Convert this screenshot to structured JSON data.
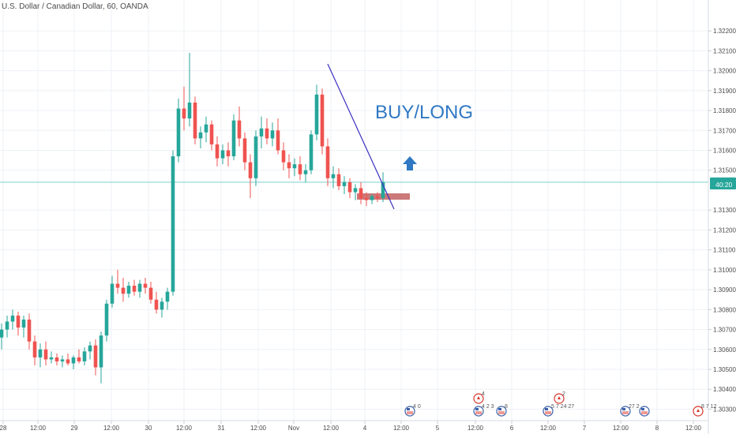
{
  "header": {
    "title": "U.S. Dollar / Canadian Dollar, 60, OANDA"
  },
  "price_axis": {
    "ticks": [
      "1.32200",
      "1.32100",
      "1.32000",
      "1.31900",
      "1.31800",
      "1.31700",
      "1.31600",
      "1.31500",
      "1.31300",
      "1.31200",
      "1.31100",
      "1.31000",
      "1.30900",
      "1.30800",
      "1.30700",
      "1.30600",
      "1.30500",
      "1.30400",
      "1.30300"
    ],
    "last_price": "1.31440",
    "countdown": "40:20",
    "last_price_color": "#26a69a"
  },
  "time_axis": {
    "labels": [
      "28",
      "12:00",
      "29",
      "12:00",
      "30",
      "12:00",
      "31",
      "12:00",
      "Nov",
      "12:00",
      "4",
      "12:00",
      "5",
      "12:00",
      "6",
      "12:00",
      "7",
      "12:00",
      "8",
      "12:00"
    ]
  },
  "annotation": {
    "text": "BUY/LONG",
    "text_color": "#2f78c4",
    "arrow_color": "#2f78c4",
    "trendline_color": "#3b2fc4",
    "zone_color": "#c66a6a"
  },
  "event_markers": [
    {
      "flag": "us",
      "label": "4 0"
    },
    {
      "flag": "ca",
      "label": "4"
    },
    {
      "flag": "us",
      "label": "4 2 3"
    },
    {
      "flag": "us",
      "label": "8"
    },
    {
      "flag": "ca",
      "label": "2"
    },
    {
      "flag": "us",
      "label": "5 7 24 27"
    },
    {
      "flag": "us",
      "label": "27 2"
    },
    {
      "flag": "us",
      "label": ""
    },
    {
      "flag": "ca",
      "label": "8 7 12"
    }
  ],
  "colors": {
    "up": "#26a69a",
    "down": "#ef5350",
    "grid": "#eef1f5",
    "text": "#4a4a4a"
  },
  "chart_data": {
    "type": "candlestick",
    "title": "U.S. Dollar / Canadian Dollar, 60, OANDA",
    "symbol": "USDCAD",
    "interval": "60",
    "source": "OANDA",
    "ylim": [
      1.3029,
      1.3226
    ],
    "last_price": 1.3144,
    "x_labels": [
      "28",
      "12:00",
      "29",
      "12:00",
      "30",
      "12:00",
      "31",
      "12:00",
      "Nov",
      "12:00",
      "4",
      "12:00",
      "5",
      "12:00",
      "6",
      "12:00",
      "7",
      "12:00",
      "8",
      "12:00"
    ],
    "candles": [
      {
        "o": 1.3066,
        "h": 1.3073,
        "l": 1.306,
        "c": 1.307
      },
      {
        "o": 1.307,
        "h": 1.3077,
        "l": 1.3066,
        "c": 1.3074
      },
      {
        "o": 1.3074,
        "h": 1.308,
        "l": 1.307,
        "c": 1.3077
      },
      {
        "o": 1.3077,
        "h": 1.3079,
        "l": 1.3067,
        "c": 1.3071
      },
      {
        "o": 1.3071,
        "h": 1.3077,
        "l": 1.3066,
        "c": 1.3075
      },
      {
        "o": 1.3075,
        "h": 1.3078,
        "l": 1.306,
        "c": 1.3064
      },
      {
        "o": 1.3064,
        "h": 1.3067,
        "l": 1.3052,
        "c": 1.3056
      },
      {
        "o": 1.3056,
        "h": 1.3063,
        "l": 1.3051,
        "c": 1.306
      },
      {
        "o": 1.306,
        "h": 1.3064,
        "l": 1.3052,
        "c": 1.3055
      },
      {
        "o": 1.3055,
        "h": 1.3059,
        "l": 1.3053,
        "c": 1.3056
      },
      {
        "o": 1.3056,
        "h": 1.3058,
        "l": 1.3052,
        "c": 1.3054
      },
      {
        "o": 1.3054,
        "h": 1.3057,
        "l": 1.3051,
        "c": 1.3055
      },
      {
        "o": 1.3055,
        "h": 1.3058,
        "l": 1.3052,
        "c": 1.3053
      },
      {
        "o": 1.3053,
        "h": 1.3057,
        "l": 1.305,
        "c": 1.3056
      },
      {
        "o": 1.3056,
        "h": 1.306,
        "l": 1.3053,
        "c": 1.3054
      },
      {
        "o": 1.3054,
        "h": 1.3061,
        "l": 1.3052,
        "c": 1.3059
      },
      {
        "o": 1.3059,
        "h": 1.3064,
        "l": 1.3055,
        "c": 1.3062
      },
      {
        "o": 1.3062,
        "h": 1.3065,
        "l": 1.3047,
        "c": 1.3051
      },
      {
        "o": 1.3051,
        "h": 1.3069,
        "l": 1.3043,
        "c": 1.3067
      },
      {
        "o": 1.3067,
        "h": 1.3085,
        "l": 1.3064,
        "c": 1.3083
      },
      {
        "o": 1.3083,
        "h": 1.3097,
        "l": 1.3081,
        "c": 1.3093
      },
      {
        "o": 1.3093,
        "h": 1.31,
        "l": 1.3088,
        "c": 1.3091
      },
      {
        "o": 1.3091,
        "h": 1.3096,
        "l": 1.3084,
        "c": 1.3088
      },
      {
        "o": 1.3088,
        "h": 1.3094,
        "l": 1.3086,
        "c": 1.3092
      },
      {
        "o": 1.3092,
        "h": 1.3095,
        "l": 1.3087,
        "c": 1.3089
      },
      {
        "o": 1.3089,
        "h": 1.3095,
        "l": 1.3086,
        "c": 1.3093
      },
      {
        "o": 1.3093,
        "h": 1.3096,
        "l": 1.3088,
        "c": 1.3091
      },
      {
        "o": 1.3091,
        "h": 1.3094,
        "l": 1.3083,
        "c": 1.3085
      },
      {
        "o": 1.3085,
        "h": 1.3089,
        "l": 1.3078,
        "c": 1.308
      },
      {
        "o": 1.308,
        "h": 1.3086,
        "l": 1.3076,
        "c": 1.3084
      },
      {
        "o": 1.3084,
        "h": 1.3091,
        "l": 1.308,
        "c": 1.3089
      },
      {
        "o": 1.3089,
        "h": 1.316,
        "l": 1.3087,
        "c": 1.3157
      },
      {
        "o": 1.3157,
        "h": 1.3186,
        "l": 1.3154,
        "c": 1.3181
      },
      {
        "o": 1.3181,
        "h": 1.3192,
        "l": 1.317,
        "c": 1.3176
      },
      {
        "o": 1.3176,
        "h": 1.3209,
        "l": 1.3172,
        "c": 1.3184
      },
      {
        "o": 1.3184,
        "h": 1.3187,
        "l": 1.3163,
        "c": 1.3166
      },
      {
        "o": 1.3166,
        "h": 1.3172,
        "l": 1.3161,
        "c": 1.3169
      },
      {
        "o": 1.3169,
        "h": 1.3177,
        "l": 1.3164,
        "c": 1.3173
      },
      {
        "o": 1.3173,
        "h": 1.3175,
        "l": 1.316,
        "c": 1.3163
      },
      {
        "o": 1.3163,
        "h": 1.3167,
        "l": 1.3152,
        "c": 1.3156
      },
      {
        "o": 1.3156,
        "h": 1.3163,
        "l": 1.3153,
        "c": 1.316
      },
      {
        "o": 1.316,
        "h": 1.3164,
        "l": 1.3152,
        "c": 1.3157
      },
      {
        "o": 1.3157,
        "h": 1.3178,
        "l": 1.3155,
        "c": 1.3175
      },
      {
        "o": 1.3175,
        "h": 1.3182,
        "l": 1.3162,
        "c": 1.3166
      },
      {
        "o": 1.3166,
        "h": 1.3169,
        "l": 1.315,
        "c": 1.3154
      },
      {
        "o": 1.3154,
        "h": 1.3158,
        "l": 1.3136,
        "c": 1.3146
      },
      {
        "o": 1.3146,
        "h": 1.317,
        "l": 1.3142,
        "c": 1.3167
      },
      {
        "o": 1.3167,
        "h": 1.3177,
        "l": 1.3161,
        "c": 1.3171
      },
      {
        "o": 1.3171,
        "h": 1.3176,
        "l": 1.3163,
        "c": 1.3166
      },
      {
        "o": 1.3166,
        "h": 1.3174,
        "l": 1.3162,
        "c": 1.317
      },
      {
        "o": 1.317,
        "h": 1.3176,
        "l": 1.3158,
        "c": 1.316
      },
      {
        "o": 1.316,
        "h": 1.3164,
        "l": 1.315,
        "c": 1.3154
      },
      {
        "o": 1.3154,
        "h": 1.3158,
        "l": 1.3146,
        "c": 1.3151
      },
      {
        "o": 1.3151,
        "h": 1.3156,
        "l": 1.3147,
        "c": 1.3153
      },
      {
        "o": 1.3153,
        "h": 1.3157,
        "l": 1.3145,
        "c": 1.3148
      },
      {
        "o": 1.3148,
        "h": 1.3153,
        "l": 1.3144,
        "c": 1.315
      },
      {
        "o": 1.315,
        "h": 1.317,
        "l": 1.3148,
        "c": 1.3168
      },
      {
        "o": 1.3168,
        "h": 1.3193,
        "l": 1.3165,
        "c": 1.3188
      },
      {
        "o": 1.3188,
        "h": 1.3191,
        "l": 1.3158,
        "c": 1.3162
      },
      {
        "o": 1.3162,
        "h": 1.3166,
        "l": 1.3142,
        "c": 1.3146
      },
      {
        "o": 1.3146,
        "h": 1.3152,
        "l": 1.3141,
        "c": 1.3148
      },
      {
        "o": 1.3148,
        "h": 1.3151,
        "l": 1.314,
        "c": 1.3142
      },
      {
        "o": 1.3142,
        "h": 1.3147,
        "l": 1.3138,
        "c": 1.3144
      },
      {
        "o": 1.3144,
        "h": 1.3146,
        "l": 1.3136,
        "c": 1.3139
      },
      {
        "o": 1.3139,
        "h": 1.3143,
        "l": 1.3135,
        "c": 1.3141
      },
      {
        "o": 1.3141,
        "h": 1.3144,
        "l": 1.3133,
        "c": 1.3136
      },
      {
        "o": 1.3136,
        "h": 1.3139,
        "l": 1.3132,
        "c": 1.3135
      },
      {
        "o": 1.3135,
        "h": 1.3138,
        "l": 1.3133,
        "c": 1.3137
      },
      {
        "o": 1.3137,
        "h": 1.3139,
        "l": 1.3134,
        "c": 1.3136
      },
      {
        "o": 1.3136,
        "h": 1.3149,
        "l": 1.3134,
        "c": 1.3144
      }
    ]
  }
}
